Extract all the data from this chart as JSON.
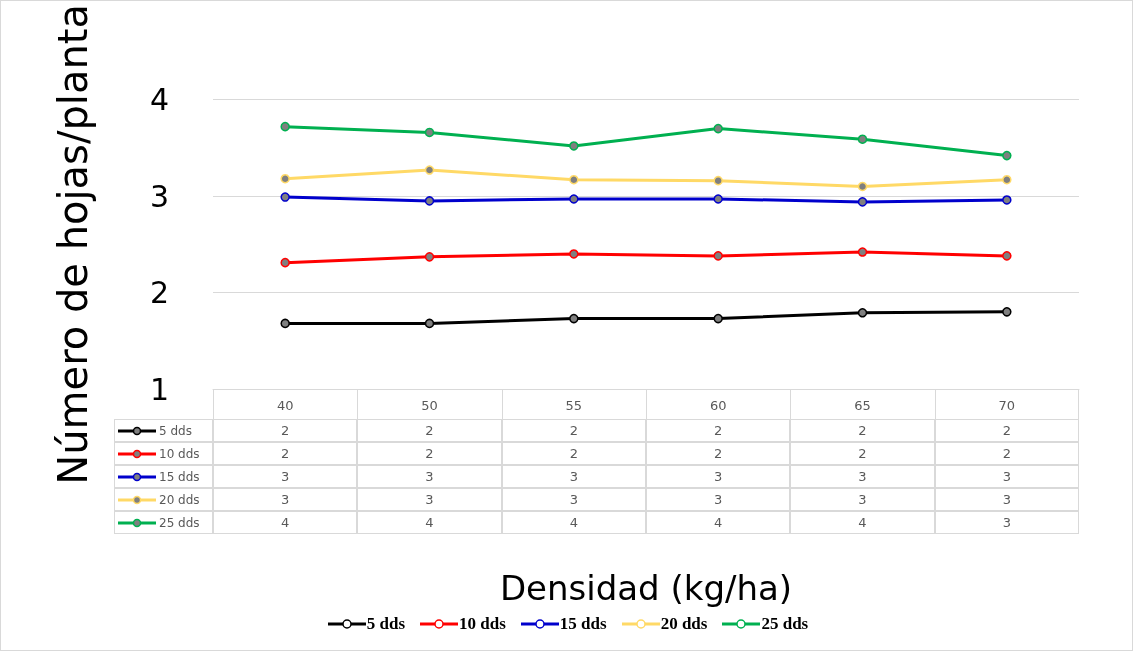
{
  "chart_data": {
    "type": "line",
    "xlabel": "Densidad (kg/ha)",
    "ylabel": "Número de hojas/planta",
    "categories": [
      "40",
      "50",
      "55",
      "60",
      "65",
      "70"
    ],
    "series": [
      {
        "name": "5 dds",
        "color": "#000000",
        "values": [
          1.68,
          1.68,
          1.73,
          1.73,
          1.79,
          1.8
        ],
        "value_labels": [
          "2",
          "2",
          "2",
          "2",
          "2",
          "2"
        ]
      },
      {
        "name": "10 dds",
        "color": "#ff0000",
        "values": [
          2.31,
          2.37,
          2.4,
          2.38,
          2.42,
          2.38
        ],
        "value_labels": [
          "2",
          "2",
          "2",
          "2",
          "2",
          "2"
        ]
      },
      {
        "name": "15 dds",
        "color": "#0000cc",
        "values": [
          2.99,
          2.95,
          2.97,
          2.97,
          2.94,
          2.96
        ],
        "value_labels": [
          "3",
          "3",
          "3",
          "3",
          "3",
          "3"
        ]
      },
      {
        "name": "20 dds",
        "color": "#ffd966",
        "values": [
          3.18,
          3.27,
          3.17,
          3.16,
          3.1,
          3.17
        ],
        "value_labels": [
          "3",
          "3",
          "3",
          "3",
          "3",
          "3"
        ]
      },
      {
        "name": "25 dds",
        "color": "#00b050",
        "values": [
          3.72,
          3.66,
          3.52,
          3.7,
          3.59,
          3.42
        ],
        "value_labels": [
          "4",
          "4",
          "4",
          "4",
          "4",
          "3"
        ]
      }
    ],
    "ylim": [
      1,
      4
    ],
    "yticks": [
      1,
      2,
      3,
      4
    ],
    "grid": "y",
    "legend": "bottom",
    "marker": "circle"
  }
}
